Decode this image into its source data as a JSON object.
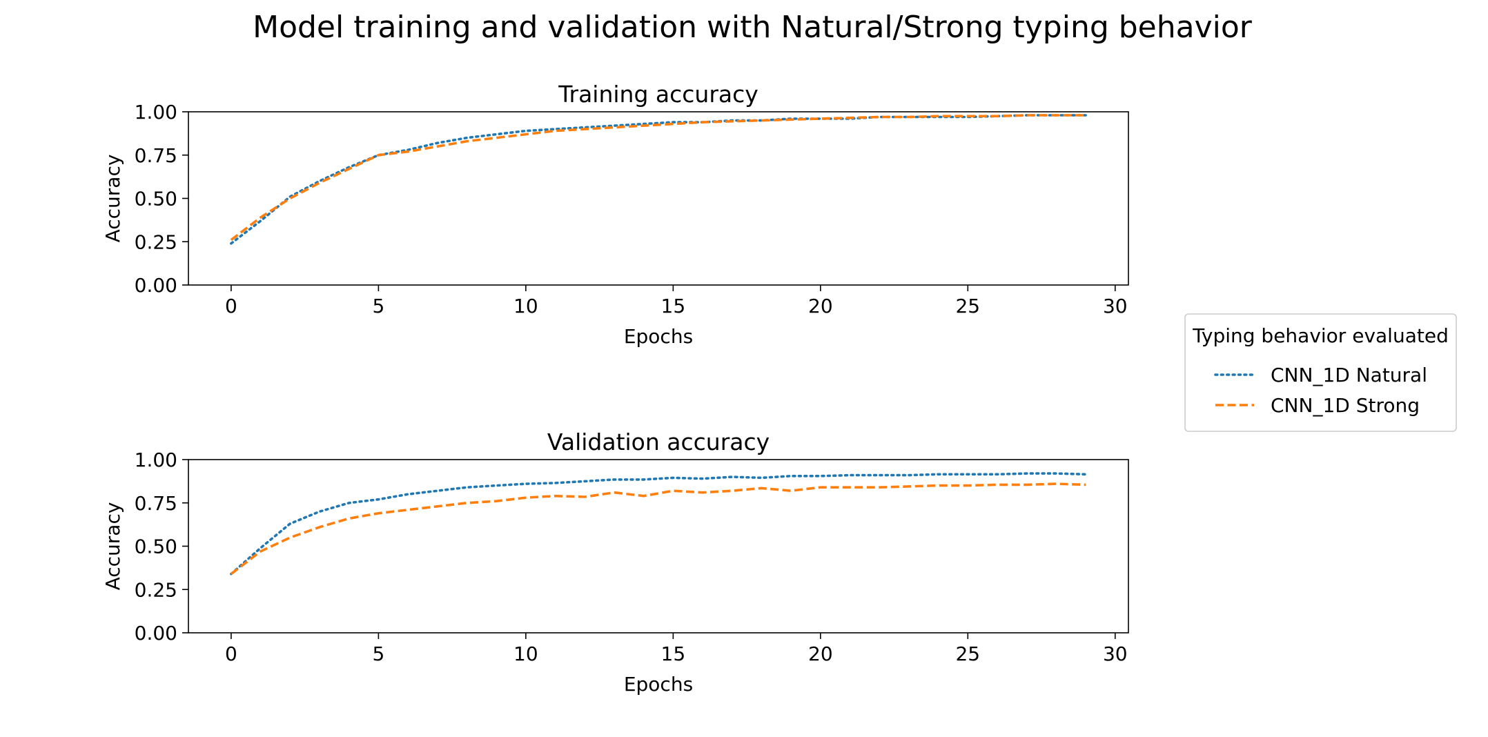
{
  "figure": {
    "suptitle": "Model training and validation with Natural/Strong typing behavior"
  },
  "legend": {
    "title": "Typing behavior evaluated",
    "placement": "right",
    "entries": [
      {
        "label": "CNN_1D Natural",
        "color": "#1f77b4",
        "style": "dotted"
      },
      {
        "label": "CNN_1D Strong",
        "color": "#ff7f0e",
        "style": "dashed"
      }
    ]
  },
  "chart_data": [
    {
      "type": "line",
      "title": "Training accuracy",
      "xlabel": "Epochs",
      "ylabel": "Accuracy",
      "xlim": [
        -1.45,
        30.45
      ],
      "ylim": [
        0,
        1
      ],
      "xticks": [
        "0",
        "5",
        "10",
        "15",
        "20",
        "25",
        "30"
      ],
      "yticks": [
        "0.00",
        "0.25",
        "0.50",
        "0.75",
        "1.00"
      ],
      "grid": false,
      "x": [
        0,
        1,
        2,
        3,
        4,
        5,
        6,
        7,
        8,
        9,
        10,
        11,
        12,
        13,
        14,
        15,
        16,
        17,
        18,
        19,
        20,
        21,
        22,
        23,
        24,
        25,
        26,
        27,
        28,
        29
      ],
      "series": [
        {
          "name": "CNN_1D Natural",
          "color": "#1f77b4",
          "style": "dotted",
          "values": [
            0.24,
            0.37,
            0.51,
            0.6,
            0.68,
            0.75,
            0.78,
            0.82,
            0.85,
            0.87,
            0.89,
            0.9,
            0.91,
            0.92,
            0.93,
            0.94,
            0.94,
            0.95,
            0.95,
            0.96,
            0.96,
            0.96,
            0.97,
            0.97,
            0.97,
            0.97,
            0.975,
            0.98,
            0.98,
            0.98
          ]
        },
        {
          "name": "CNN_1D Strong",
          "color": "#ff7f0e",
          "style": "dashed",
          "values": [
            0.26,
            0.39,
            0.5,
            0.59,
            0.67,
            0.75,
            0.77,
            0.8,
            0.83,
            0.85,
            0.87,
            0.89,
            0.9,
            0.91,
            0.92,
            0.93,
            0.94,
            0.945,
            0.95,
            0.955,
            0.96,
            0.965,
            0.97,
            0.97,
            0.975,
            0.975,
            0.975,
            0.98,
            0.98,
            0.98
          ]
        }
      ]
    },
    {
      "type": "line",
      "title": "Validation accuracy",
      "xlabel": "Epochs",
      "ylabel": "Accuracy",
      "xlim": [
        -1.45,
        30.45
      ],
      "ylim": [
        0,
        1
      ],
      "xticks": [
        "0",
        "5",
        "10",
        "15",
        "20",
        "25",
        "30"
      ],
      "yticks": [
        "0.00",
        "0.25",
        "0.50",
        "0.75",
        "1.00"
      ],
      "grid": false,
      "x": [
        0,
        1,
        2,
        3,
        4,
        5,
        6,
        7,
        8,
        9,
        10,
        11,
        12,
        13,
        14,
        15,
        16,
        17,
        18,
        19,
        20,
        21,
        22,
        23,
        24,
        25,
        26,
        27,
        28,
        29
      ],
      "series": [
        {
          "name": "CNN_1D Natural",
          "color": "#1f77b4",
          "style": "dotted",
          "values": [
            0.34,
            0.49,
            0.63,
            0.7,
            0.75,
            0.77,
            0.8,
            0.82,
            0.84,
            0.85,
            0.86,
            0.865,
            0.875,
            0.885,
            0.885,
            0.895,
            0.89,
            0.9,
            0.895,
            0.905,
            0.905,
            0.91,
            0.91,
            0.91,
            0.915,
            0.915,
            0.915,
            0.92,
            0.92,
            0.915
          ]
        },
        {
          "name": "CNN_1D Strong",
          "color": "#ff7f0e",
          "style": "dashed",
          "values": [
            0.34,
            0.47,
            0.55,
            0.61,
            0.66,
            0.69,
            0.71,
            0.73,
            0.75,
            0.76,
            0.78,
            0.79,
            0.785,
            0.81,
            0.79,
            0.82,
            0.81,
            0.82,
            0.835,
            0.82,
            0.84,
            0.84,
            0.84,
            0.845,
            0.85,
            0.85,
            0.855,
            0.855,
            0.86,
            0.855
          ]
        }
      ]
    }
  ]
}
